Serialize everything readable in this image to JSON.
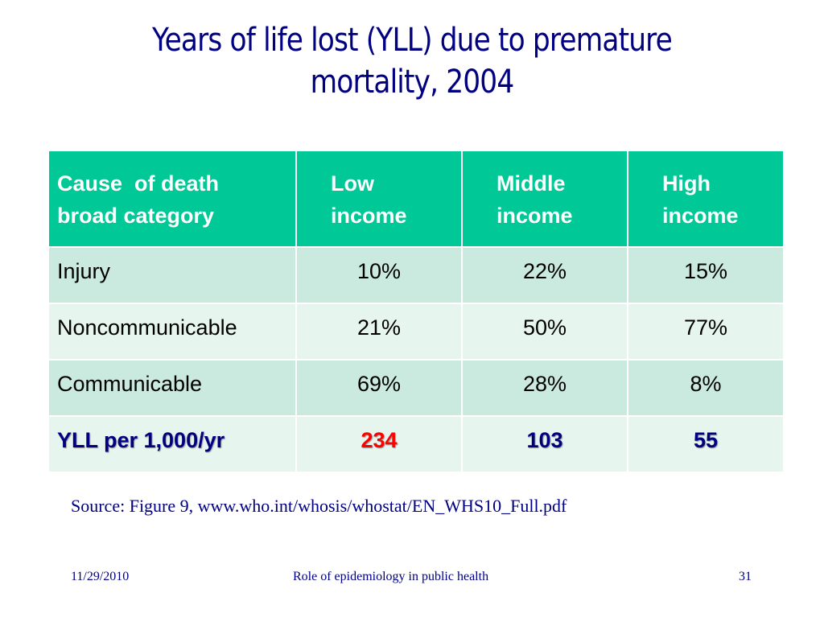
{
  "slide": {
    "title_line1": "Years of life lost (YLL) due to premature",
    "title_line2": "mortality, 2004"
  },
  "table": {
    "headers": {
      "category_line1": "Cause  of death",
      "category_line2": "broad category",
      "low_line1": "Low",
      "low_line2": "income",
      "middle_line1": "Middle",
      "middle_line2": "income",
      "high_line1": "High",
      "high_line2": "income"
    },
    "rows": [
      {
        "label": "Injury",
        "low": "10%",
        "middle": "22%",
        "high": "15%"
      },
      {
        "label": "Noncommunicable",
        "low": "21%",
        "middle": "50%",
        "high": "77%"
      },
      {
        "label": "Communicable",
        "low": "69%",
        "middle": "28%",
        "high": "8%"
      },
      {
        "label": "YLL per 1,000/yr",
        "low": "234",
        "middle": "103",
        "high": "55"
      }
    ]
  },
  "source_note": "Source: Figure 9, www.who.int/whosis/whostat/EN_WHS10_Full.pdf",
  "footer": {
    "date": "11/29/2010",
    "center": "Role of epidemiology in public health",
    "page_number": "31"
  },
  "colors": {
    "title": "#000080",
    "header_bg": "#00c896",
    "row_dark": "#cbeadf",
    "row_light": "#e7f5ef",
    "highlight": "#ff0000"
  }
}
